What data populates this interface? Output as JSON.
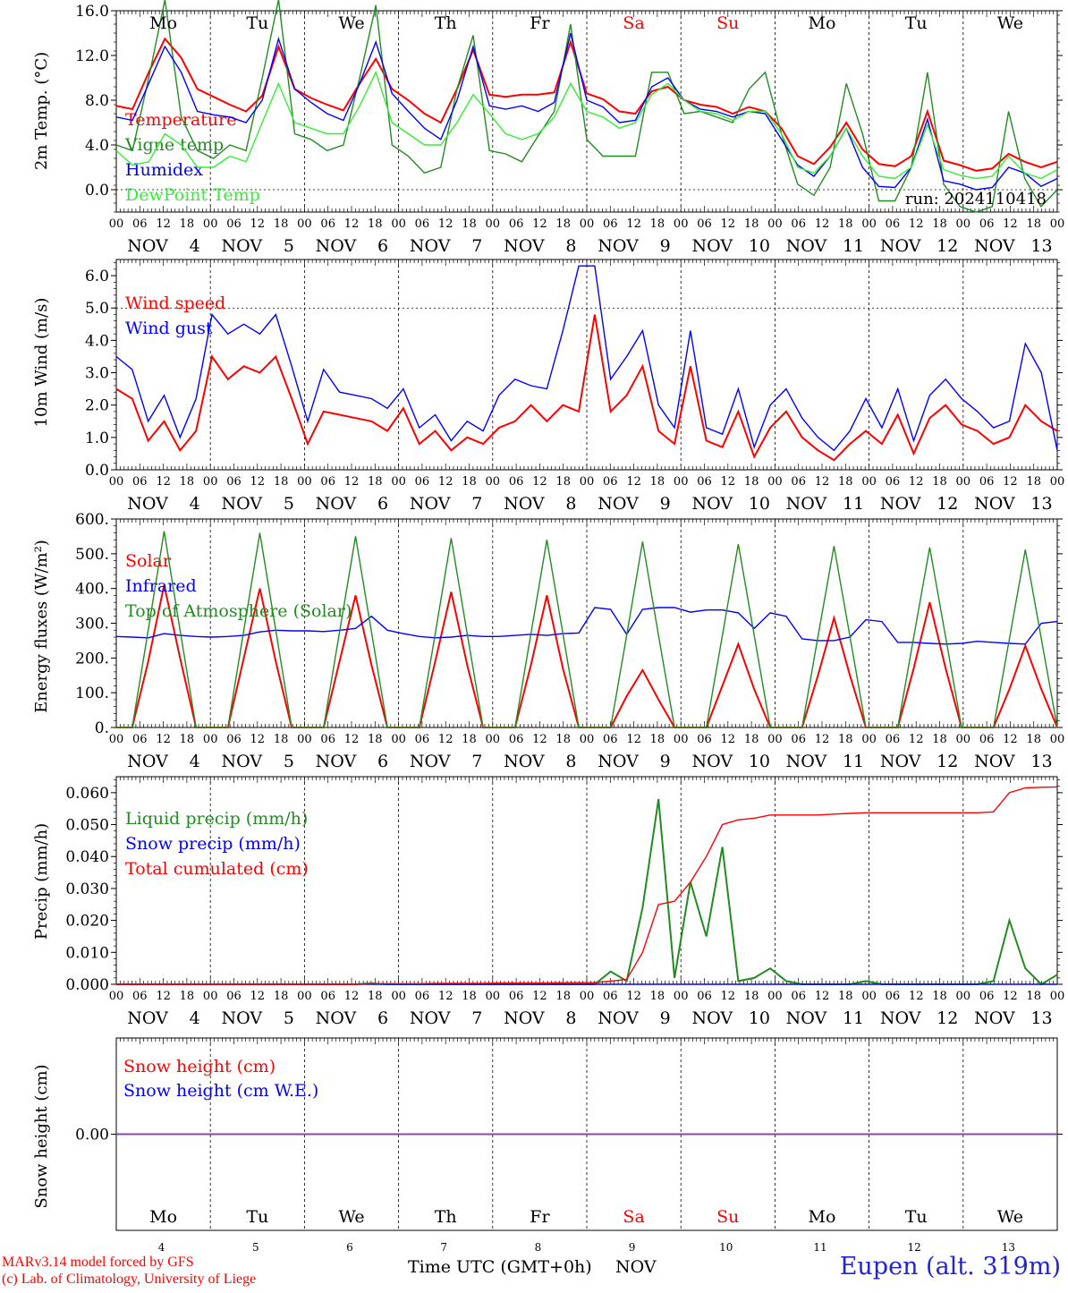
{
  "footer": {
    "credit_line_1": "MARv3.14 model forced by GFS",
    "credit_line_2": "(c) Lab. of Climatology, University of Liege",
    "time_axis_label": "Time UTC (GMT+0h)",
    "month_label": "NOV",
    "station": "Eupen (alt. 319m)"
  },
  "colors": {
    "red": "#ff0000",
    "darkgreen": "#228b22",
    "lightgreen": "#33ee33",
    "blue": "#0000ff",
    "purple": "#8844aa",
    "grid": "#000000"
  },
  "chart_data": [
    {
      "type": "line",
      "id": "temperature",
      "ylabel": "2m Temp. (°C)",
      "ylim": [
        -2.0,
        16.0
      ],
      "yticks": [
        0.0,
        4.0,
        8.0,
        12.0,
        16.0
      ],
      "ytick_labels": [
        "0.0",
        "4.0",
        "8.0",
        "12.0",
        "16.0"
      ],
      "annotation": "run: 2024110418",
      "day_names": [
        "Mo",
        "Tu",
        "We",
        "Th",
        "Fr",
        "Sa",
        "Su",
        "Mo",
        "Tu",
        "We"
      ],
      "day_name_colors": [
        "#000000",
        "#000000",
        "#000000",
        "#000000",
        "#000000",
        "#ff0000",
        "#ff0000",
        "#000000",
        "#000000",
        "#000000"
      ],
      "x_start_hour": 0,
      "x_step_hours": 6,
      "series": [
        {
          "name": "Temperature",
          "color": "#ff0000",
          "values": [
            7.5,
            7.2,
            10.5,
            13.5,
            11.8,
            9.0,
            8.3,
            7.6,
            7.0,
            8.4,
            12.8,
            9.0,
            8.2,
            7.6,
            7.1,
            9.5,
            11.7,
            9.0,
            8.0,
            6.8,
            6.0,
            9.0,
            12.5,
            8.5,
            8.3,
            8.5,
            8.5,
            8.7,
            13.2,
            8.6,
            8.1,
            7.0,
            6.8,
            8.8,
            9.2,
            8.0,
            7.6,
            7.4,
            6.8,
            7.4,
            7.0,
            5.5,
            3.0,
            2.3,
            3.8,
            6.0,
            3.6,
            2.3,
            2.1,
            3.0,
            7.0,
            2.6,
            2.2,
            1.7,
            1.9,
            3.2,
            2.5,
            2.0,
            2.5
          ]
        },
        {
          "name": "Vigne temp",
          "color": "#228b22",
          "values": [
            4.0,
            3.5,
            10.0,
            17.0,
            6.5,
            3.5,
            2.8,
            4.0,
            3.5,
            10.0,
            17.0,
            5.0,
            4.5,
            3.5,
            4.0,
            10.0,
            16.5,
            4.0,
            3.0,
            1.5,
            2.0,
            9.0,
            13.8,
            3.5,
            3.2,
            2.5,
            4.8,
            7.0,
            14.8,
            4.5,
            3.0,
            3.0,
            3.0,
            10.5,
            10.5,
            6.8,
            7.0,
            6.5,
            6.0,
            9.0,
            10.5,
            5.0,
            0.5,
            -0.5,
            2.0,
            9.5,
            5.0,
            -1.0,
            -1.0,
            2.0,
            10.5,
            0.5,
            -1.5,
            -2.0,
            -1.5,
            7.0,
            1.0,
            -1.5,
            0.0
          ]
        },
        {
          "name": "Humidex",
          "color": "#0000ff",
          "values": [
            6.5,
            6.2,
            9.5,
            12.8,
            10.5,
            7.0,
            6.7,
            6.5,
            6.0,
            8.0,
            13.5,
            9.0,
            7.8,
            6.8,
            6.2,
            9.5,
            13.2,
            8.6,
            7.0,
            5.5,
            4.5,
            8.0,
            12.8,
            7.5,
            7.2,
            7.5,
            7.0,
            7.8,
            14.0,
            8.0,
            7.4,
            6.0,
            6.2,
            9.2,
            10.0,
            8.0,
            7.2,
            7.0,
            6.5,
            7.0,
            6.8,
            4.5,
            2.2,
            1.2,
            3.0,
            5.5,
            2.0,
            0.3,
            0.2,
            2.0,
            6.3,
            0.8,
            0.5,
            0.0,
            0.2,
            2.0,
            1.5,
            0.3,
            1.0
          ]
        },
        {
          "name": "DewPoint Temp",
          "color": "#33ee33",
          "values": [
            3.5,
            2.2,
            2.5,
            5.0,
            4.0,
            2.0,
            2.0,
            3.0,
            2.5,
            6.0,
            9.5,
            6.0,
            5.5,
            5.0,
            5.0,
            7.5,
            10.5,
            6.0,
            5.0,
            4.0,
            4.0,
            6.0,
            8.5,
            6.8,
            5.0,
            4.5,
            5.0,
            6.5,
            9.5,
            7.0,
            6.5,
            5.5,
            6.0,
            8.5,
            9.5,
            8.0,
            7.0,
            6.8,
            6.2,
            7.0,
            7.0,
            5.0,
            2.0,
            1.5,
            3.0,
            5.5,
            3.0,
            1.2,
            1.0,
            2.0,
            5.8,
            1.8,
            1.3,
            1.0,
            1.2,
            3.0,
            1.5,
            1.0,
            1.8
          ]
        }
      ]
    },
    {
      "type": "line",
      "id": "wind",
      "ylabel": "10m Wind (m/s)",
      "ylim": [
        0.0,
        6.5
      ],
      "yticks": [
        0.0,
        1.0,
        2.0,
        3.0,
        4.0,
        5.0,
        6.0
      ],
      "ytick_labels": [
        "0.0",
        "1.0",
        "2.0",
        "3.0",
        "4.0",
        "5.0",
        "6.0"
      ],
      "x_start_hour": 0,
      "x_step_hours": 6,
      "series": [
        {
          "name": "Wind speed",
          "color": "#ff0000",
          "values": [
            2.5,
            2.2,
            0.9,
            1.5,
            0.6,
            1.2,
            3.5,
            2.8,
            3.2,
            3.0,
            3.5,
            2.2,
            0.8,
            1.8,
            1.7,
            1.6,
            1.5,
            1.2,
            1.9,
            0.8,
            1.2,
            0.6,
            1.0,
            0.8,
            1.3,
            1.5,
            2.0,
            1.5,
            2.0,
            1.8,
            4.8,
            1.8,
            2.3,
            3.2,
            1.2,
            0.8,
            3.2,
            0.9,
            0.7,
            1.8,
            0.4,
            1.3,
            1.8,
            1.0,
            0.6,
            0.3,
            0.8,
            1.2,
            0.8,
            1.7,
            0.5,
            1.6,
            2.0,
            1.4,
            1.2,
            0.8,
            1.0,
            2.0,
            1.5,
            1.2
          ]
        },
        {
          "name": "Wind gust",
          "color": "#0000ff",
          "values": [
            3.5,
            3.1,
            1.5,
            2.3,
            1.0,
            2.2,
            4.8,
            4.2,
            4.5,
            4.2,
            4.8,
            3.2,
            1.5,
            3.1,
            2.4,
            2.3,
            2.2,
            1.9,
            2.5,
            1.3,
            1.7,
            0.9,
            1.5,
            1.2,
            2.3,
            2.8,
            2.6,
            2.5,
            4.3,
            6.3,
            6.3,
            2.8,
            3.5,
            4.3,
            2.0,
            1.3,
            4.3,
            1.3,
            1.1,
            2.5,
            0.7,
            2.0,
            2.5,
            1.6,
            1.0,
            0.6,
            1.2,
            2.2,
            1.3,
            2.5,
            0.9,
            2.3,
            2.8,
            2.2,
            1.8,
            1.3,
            1.5,
            3.9,
            3.0,
            0.6
          ]
        }
      ]
    },
    {
      "type": "line",
      "id": "energy",
      "ylabel": "Energy fluxes (W/m²)",
      "ylim": [
        0.0,
        600.0
      ],
      "yticks": [
        0.0,
        100.0,
        200.0,
        300.0,
        400.0,
        500.0,
        600.0
      ],
      "ytick_labels": [
        "0.",
        "100.",
        "200.",
        "300.",
        "400.",
        "500.",
        "600."
      ],
      "x_start_hour": 0,
      "x_step_hours": 6,
      "series": [
        {
          "name": "Solar",
          "color": "#ff0000",
          "values": [
            0,
            0,
            190,
            410,
            200,
            0,
            0,
            0,
            200,
            400,
            190,
            0,
            0,
            0,
            190,
            380,
            180,
            0,
            0,
            0,
            190,
            390,
            180,
            0,
            0,
            0,
            180,
            380,
            170,
            0,
            0,
            0,
            90,
            165,
            80,
            0,
            0,
            0,
            120,
            240,
            110,
            0,
            0,
            0,
            150,
            315,
            150,
            0,
            0,
            0,
            170,
            360,
            170,
            0,
            0,
            0,
            110,
            235,
            110,
            0
          ]
        },
        {
          "name": "Infrared",
          "color": "#0000ff",
          "values": [
            262,
            260,
            258,
            270,
            265,
            262,
            260,
            262,
            265,
            275,
            280,
            278,
            278,
            276,
            280,
            285,
            320,
            280,
            270,
            262,
            258,
            260,
            265,
            262,
            262,
            265,
            268,
            265,
            270,
            272,
            345,
            340,
            268,
            340,
            345,
            345,
            332,
            338,
            338,
            330,
            285,
            330,
            320,
            255,
            250,
            250,
            260,
            310,
            305,
            245,
            245,
            242,
            240,
            242,
            248,
            245,
            242,
            240,
            300,
            305
          ]
        },
        {
          "name": "Top of Atmosphere (Solar)",
          "color": "#228b22",
          "values": [
            0,
            0,
            280,
            565,
            280,
            0,
            0,
            0,
            280,
            560,
            280,
            0,
            0,
            0,
            275,
            550,
            275,
            0,
            0,
            0,
            270,
            545,
            270,
            0,
            0,
            0,
            270,
            540,
            270,
            0,
            0,
            0,
            265,
            535,
            265,
            0,
            0,
            0,
            265,
            528,
            265,
            0,
            0,
            0,
            262,
            522,
            262,
            0,
            0,
            0,
            260,
            518,
            260,
            0,
            0,
            0,
            255,
            512,
            255,
            0
          ]
        }
      ]
    },
    {
      "type": "line",
      "id": "precip",
      "ylabel": "Precip (mm/h)",
      "ylim": [
        0.0,
        0.065
      ],
      "yticks": [
        0.0,
        0.01,
        0.02,
        0.03,
        0.04,
        0.05,
        0.06
      ],
      "ytick_labels": [
        "0.000",
        "0.010",
        "0.020",
        "0.030",
        "0.040",
        "0.050",
        "0.060"
      ],
      "x_start_hour": 0,
      "x_step_hours": 6,
      "series": [
        {
          "name": "Liquid precip (mm/h)",
          "color": "#228b22",
          "values": [
            0,
            0,
            0,
            0,
            0,
            0,
            0,
            0,
            0,
            0,
            0,
            0,
            0,
            0,
            0,
            0,
            0.0003,
            0,
            0,
            0,
            0,
            0,
            0,
            0,
            0,
            0,
            0,
            0,
            0,
            0,
            0,
            0.004,
            0.001,
            0.024,
            0.058,
            0.002,
            0.032,
            0.015,
            0.043,
            0.001,
            0.002,
            0.005,
            0.001,
            0,
            0,
            0,
            0,
            0.001,
            0,
            0,
            0,
            0,
            0,
            0,
            0,
            0.001,
            0.02,
            0.005,
            0,
            0.003
          ]
        },
        {
          "name": "Snow precip (mm/h)",
          "color": "#0000ff",
          "values": [
            0,
            0,
            0,
            0,
            0,
            0,
            0,
            0,
            0,
            0,
            0,
            0,
            0,
            0,
            0,
            0,
            0,
            0,
            0,
            0,
            0,
            0,
            0,
            0,
            0,
            0,
            0,
            0,
            0,
            0,
            0,
            0,
            0,
            0,
            0,
            0,
            0,
            0,
            0,
            0,
            0,
            0,
            0,
            0,
            0,
            0,
            0,
            0,
            0,
            0,
            0,
            0,
            0,
            0,
            0,
            0,
            0,
            0,
            0,
            0
          ]
        },
        {
          "name": "Total cumulated (cm)",
          "color": "#ff0000",
          "values": [
            0,
            0,
            0,
            0,
            0,
            0,
            0,
            0,
            0,
            0,
            0,
            0,
            0,
            0,
            0,
            0,
            0.0002,
            0.0002,
            0.0002,
            0.0002,
            0.0003,
            0.0003,
            0.0003,
            0.0003,
            0.0004,
            0.0004,
            0.0004,
            0.0004,
            0.0005,
            0.0005,
            0.0005,
            0.001,
            0.0015,
            0.01,
            0.025,
            0.026,
            0.032,
            0.04,
            0.05,
            0.0515,
            0.052,
            0.053,
            0.053,
            0.053,
            0.053,
            0.0533,
            0.0535,
            0.0537,
            0.0537,
            0.0537,
            0.0537,
            0.0537,
            0.0537,
            0.0537,
            0.0537,
            0.054,
            0.06,
            0.0615,
            0.0617,
            0.0618
          ]
        }
      ]
    },
    {
      "type": "line",
      "id": "snow",
      "ylabel": "Snow height (cm)",
      "ylim": [
        -1.0,
        1.0
      ],
      "yticks": [
        0.0
      ],
      "ytick_labels": [
        "0.00"
      ],
      "day_names": [
        "Mo",
        "Tu",
        "We",
        "Th",
        "Fr",
        "Sa",
        "Su",
        "Mo",
        "Tu",
        "We"
      ],
      "day_name_colors": [
        "#000000",
        "#000000",
        "#000000",
        "#000000",
        "#000000",
        "#ff0000",
        "#ff0000",
        "#000000",
        "#000000",
        "#000000"
      ],
      "x_start_hour": 0,
      "x_step_hours": 6,
      "series": [
        {
          "name": "Snow height (cm)",
          "color": "#ff0000",
          "values": [
            0,
            0
          ]
        },
        {
          "name": "Snow height (cm W.E.)",
          "color": "#0000ff",
          "values": [
            0,
            0
          ]
        }
      ]
    }
  ],
  "x_axis": {
    "hour_labels": [
      "00",
      "06",
      "12",
      "18"
    ],
    "end_label": "00",
    "month": "NOV",
    "dates": [
      "4",
      "5",
      "6",
      "7",
      "8",
      "9",
      "10",
      "11",
      "12",
      "13"
    ],
    "bottom_dates": [
      "4",
      "5",
      "6",
      "7",
      "8",
      "9",
      "10",
      "11",
      "12",
      "13"
    ]
  }
}
